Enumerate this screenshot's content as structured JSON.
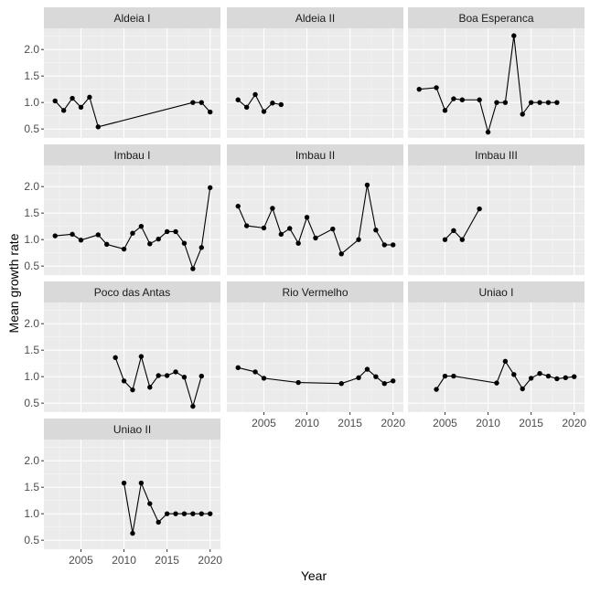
{
  "chart_data": {
    "type": "line",
    "xlabel": "Year",
    "ylabel": "Mean growth rate",
    "xlim": [
      2000.7,
      2021.2
    ],
    "ylim": [
      0.33,
      2.4
    ],
    "xticks": [
      2005,
      2010,
      2015,
      2020
    ],
    "yticks": [
      0.5,
      1.0,
      1.5,
      2.0
    ],
    "ytick_labels": [
      "0.5",
      "1.0",
      "1.5",
      "2.0"
    ],
    "xtick_labels": [
      "2005",
      "2010",
      "2015",
      "2020"
    ],
    "grid": true,
    "panels": [
      {
        "name": "Aldeia I",
        "x": [
          2002,
          2003,
          2004,
          2005,
          2006,
          2007,
          2018,
          2019,
          2020
        ],
        "y": [
          1.03,
          0.85,
          1.08,
          0.91,
          1.1,
          0.54,
          1.0,
          1.0,
          0.82
        ]
      },
      {
        "name": "Aldeia II",
        "x": [
          2002,
          2003,
          2004,
          2005,
          2006,
          2007
        ],
        "y": [
          1.05,
          0.91,
          1.15,
          0.83,
          0.99,
          0.96
        ]
      },
      {
        "name": "Boa Esperanca",
        "x": [
          2002,
          2004,
          2005,
          2006,
          2007,
          2009,
          2010,
          2011,
          2012,
          2013,
          2014,
          2015,
          2016,
          2017,
          2018
        ],
        "y": [
          1.25,
          1.28,
          0.85,
          1.07,
          1.05,
          1.05,
          0.44,
          1.0,
          1.0,
          2.26,
          0.78,
          1.0,
          1.0,
          1.0,
          1.0
        ]
      },
      {
        "name": "Imbau I",
        "x": [
          2002,
          2004,
          2005,
          2007,
          2008,
          2010,
          2011,
          2012,
          2013,
          2014,
          2015,
          2016,
          2017,
          2018,
          2019,
          2020
        ],
        "y": [
          1.07,
          1.1,
          0.99,
          1.09,
          0.91,
          0.82,
          1.12,
          1.25,
          0.92,
          1.01,
          1.15,
          1.15,
          0.93,
          0.45,
          0.85,
          1.98
        ]
      },
      {
        "name": "Imbau II",
        "x": [
          2002,
          2003,
          2005,
          2006,
          2007,
          2008,
          2009,
          2010,
          2011,
          2013,
          2014,
          2016,
          2017,
          2018,
          2019,
          2020
        ],
        "y": [
          1.63,
          1.26,
          1.22,
          1.59,
          1.1,
          1.21,
          0.93,
          1.42,
          1.03,
          1.2,
          0.73,
          1.0,
          2.03,
          1.18,
          0.9,
          0.9
        ]
      },
      {
        "name": "Imbau III",
        "x": [
          2005,
          2006,
          2007,
          2009
        ],
        "y": [
          1.0,
          1.17,
          1.0,
          1.58
        ]
      },
      {
        "name": "Poco das Antas",
        "x": [
          2009,
          2010,
          2011,
          2012,
          2013,
          2014,
          2015,
          2016,
          2017,
          2018,
          2019
        ],
        "y": [
          1.36,
          0.92,
          0.75,
          1.38,
          0.8,
          1.02,
          1.02,
          1.09,
          0.99,
          0.44,
          1.01
        ]
      },
      {
        "name": "Rio Vermelho",
        "x": [
          2002,
          2004,
          2005,
          2009,
          2014,
          2016,
          2017,
          2018,
          2019,
          2020
        ],
        "y": [
          1.17,
          1.09,
          0.97,
          0.89,
          0.87,
          0.98,
          1.14,
          1.0,
          0.87,
          0.92
        ]
      },
      {
        "name": "Uniao I",
        "x": [
          2004,
          2005,
          2006,
          2011,
          2012,
          2013,
          2014,
          2015,
          2016,
          2017,
          2018,
          2019,
          2020
        ],
        "y": [
          0.76,
          1.01,
          1.01,
          0.88,
          1.29,
          1.04,
          0.77,
          0.97,
          1.06,
          1.01,
          0.96,
          0.98,
          1.0
        ]
      },
      {
        "name": "Uniao II",
        "x": [
          2010,
          2011,
          2012,
          2013,
          2014,
          2015,
          2016,
          2017,
          2018,
          2019,
          2020
        ],
        "y": [
          1.58,
          0.63,
          1.58,
          1.19,
          0.84,
          1.0,
          1.0,
          1.0,
          1.0,
          1.0,
          1.0
        ]
      }
    ]
  }
}
